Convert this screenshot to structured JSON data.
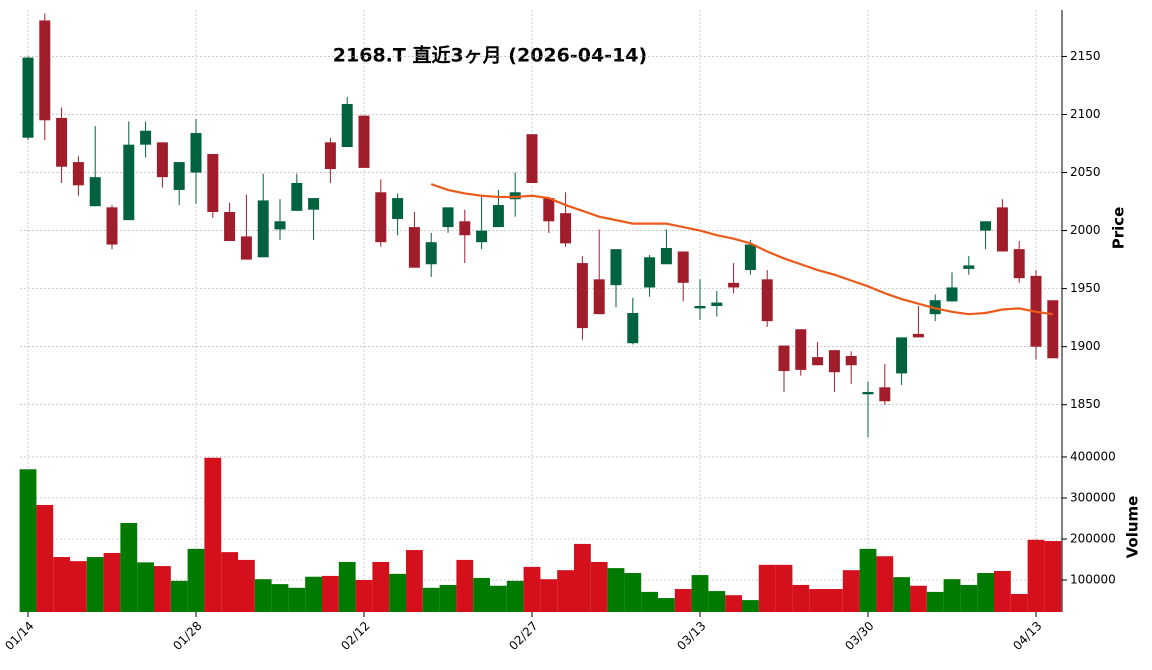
{
  "chart_data": [
    {
      "type": "candlestick",
      "title": "2168.T  直近3ヶ月  (2026-04-14)",
      "ylabel": "Price",
      "open": [
        2080,
        2181,
        2097,
        2059,
        2021,
        2020,
        2009,
        2074,
        2076,
        2035,
        2050,
        2066,
        2016,
        1995,
        1977,
        2001,
        2017,
        2018,
        2076,
        2072,
        2099,
        2033,
        2010,
        2003,
        1971,
        2003,
        2008,
        1990,
        2003,
        2027,
        2083,
        2028,
        2015,
        1972,
        1958,
        1953,
        1903,
        1951,
        1971,
        1982,
        1933,
        1935,
        1955,
        1966,
        1958,
        1901,
        1915,
        1891,
        1897,
        1892,
        1859,
        1865,
        1877,
        1911,
        1928,
        1939,
        1967,
        2000,
        2020,
        1984,
        1961,
        1940
      ],
      "high": [
        2150,
        2187,
        2106,
        2064,
        2090,
        2022,
        2094,
        2094,
        2076,
        2059,
        2096,
        2066,
        2024,
        2031,
        2049,
        2027,
        2049,
        2028,
        2080,
        2115,
        2099,
        2044,
        2032,
        2016,
        1998,
        2020,
        2018,
        2031,
        2035,
        2050,
        2083,
        2028,
        2033,
        1978,
        2001,
        1984,
        1942,
        1979,
        2001,
        1982,
        1958,
        1948,
        1972,
        1992,
        1966,
        1901,
        1915,
        1904,
        1897,
        1896,
        1870,
        1885,
        1908,
        1935,
        1945,
        1964,
        1978,
        2008,
        2027,
        1991,
        1966,
        1940
      ],
      "low": [
        2078,
        2078,
        2041,
        2030,
        2021,
        1984,
        2009,
        2063,
        2037,
        2022,
        2023,
        2011,
        1991,
        1975,
        1977,
        1992,
        2017,
        1992,
        2041,
        2072,
        2054,
        1986,
        1996,
        1968,
        1960,
        1998,
        1972,
        1984,
        2003,
        2012,
        2041,
        1998,
        1986,
        1906,
        1928,
        1934,
        1902,
        1943,
        1971,
        1939,
        1923,
        1926,
        1946,
        1962,
        1917,
        1861,
        1875,
        1884,
        1861,
        1868,
        1822,
        1850,
        1867,
        1908,
        1922,
        1939,
        1962,
        1984,
        1982,
        1955,
        1889,
        1890
      ],
      "close": [
        2149,
        2095,
        2055,
        2039,
        2046,
        1988,
        2074,
        2086,
        2046,
        2059,
        2084,
        2016,
        1991,
        1975,
        2026,
        2008,
        2041,
        2028,
        2053,
        2109,
        2054,
        1990,
        2028,
        1968,
        1990,
        2020,
        1996,
        2000,
        2022,
        2033,
        2041,
        2008,
        1989,
        1916,
        1928,
        1984,
        1929,
        1977,
        1985,
        1955,
        1935,
        1938,
        1951,
        1988,
        1922,
        1879,
        1880,
        1884,
        1878,
        1884,
        1861,
        1853,
        1908,
        1908,
        1940,
        1951,
        1970,
        2008,
        1982,
        1959,
        1900,
        1890
      ],
      "up_color": "#00623e",
      "down_color": "#a01d2b",
      "moving_average": {
        "color": "#ec5a1a",
        "values": [
          null,
          null,
          null,
          null,
          null,
          null,
          null,
          null,
          null,
          null,
          null,
          null,
          null,
          null,
          null,
          null,
          null,
          null,
          null,
          null,
          null,
          null,
          null,
          null,
          2040,
          2035,
          2032,
          2030,
          2029,
          2029,
          2030,
          2028,
          2022,
          2017,
          2012,
          2009,
          2006,
          2006,
          2006,
          2003,
          2000,
          1996,
          1993,
          1989,
          1982,
          1976,
          1971,
          1966,
          1962,
          1957,
          1952,
          1946,
          1941,
          1937,
          1933,
          1930,
          1928,
          1929,
          1932,
          1933,
          1930,
          1928
        ]
      },
      "ylim": [
        1811,
        2190
      ],
      "yticks": [
        1850,
        1900,
        1950,
        2000,
        2050,
        2100,
        2150
      ],
      "grid": true
    },
    {
      "type": "bar",
      "ylabel": "Volume",
      "categories": [
        "01/14",
        null,
        null,
        null,
        null,
        null,
        null,
        null,
        null,
        null,
        "01/28",
        null,
        null,
        null,
        null,
        null,
        null,
        null,
        null,
        null,
        "02/12",
        null,
        null,
        null,
        null,
        null,
        null,
        null,
        null,
        null,
        "02/27",
        null,
        null,
        null,
        null,
        null,
        null,
        null,
        null,
        null,
        "03/13",
        null,
        null,
        null,
        null,
        null,
        null,
        null,
        null,
        null,
        "03/30",
        null,
        null,
        null,
        null,
        null,
        null,
        null,
        null,
        null,
        "04/13",
        null
      ],
      "values": [
        370000,
        283000,
        156000,
        146000,
        156000,
        166000,
        239000,
        143000,
        134000,
        98000,
        176000,
        398000,
        168000,
        149000,
        102000,
        90000,
        81000,
        108000,
        110000,
        144000,
        100000,
        144000,
        115000,
        173000,
        81000,
        88000,
        149000,
        105000,
        86000,
        98000,
        132000,
        102000,
        124000,
        188000,
        144000,
        129000,
        117000,
        71000,
        56000,
        78000,
        112000,
        73000,
        63000,
        51000,
        137000,
        137000,
        88000,
        78000,
        78000,
        124000,
        176000,
        158000,
        107000,
        86000,
        71000,
        102000,
        88000,
        117000,
        122000,
        66000,
        198000,
        195000
      ],
      "up_color": "#007a00",
      "down_color": "#d4101c",
      "ylim": [
        22000,
        417000
      ],
      "yticks": [
        100000,
        200000,
        300000,
        400000
      ],
      "grid": true
    }
  ]
}
